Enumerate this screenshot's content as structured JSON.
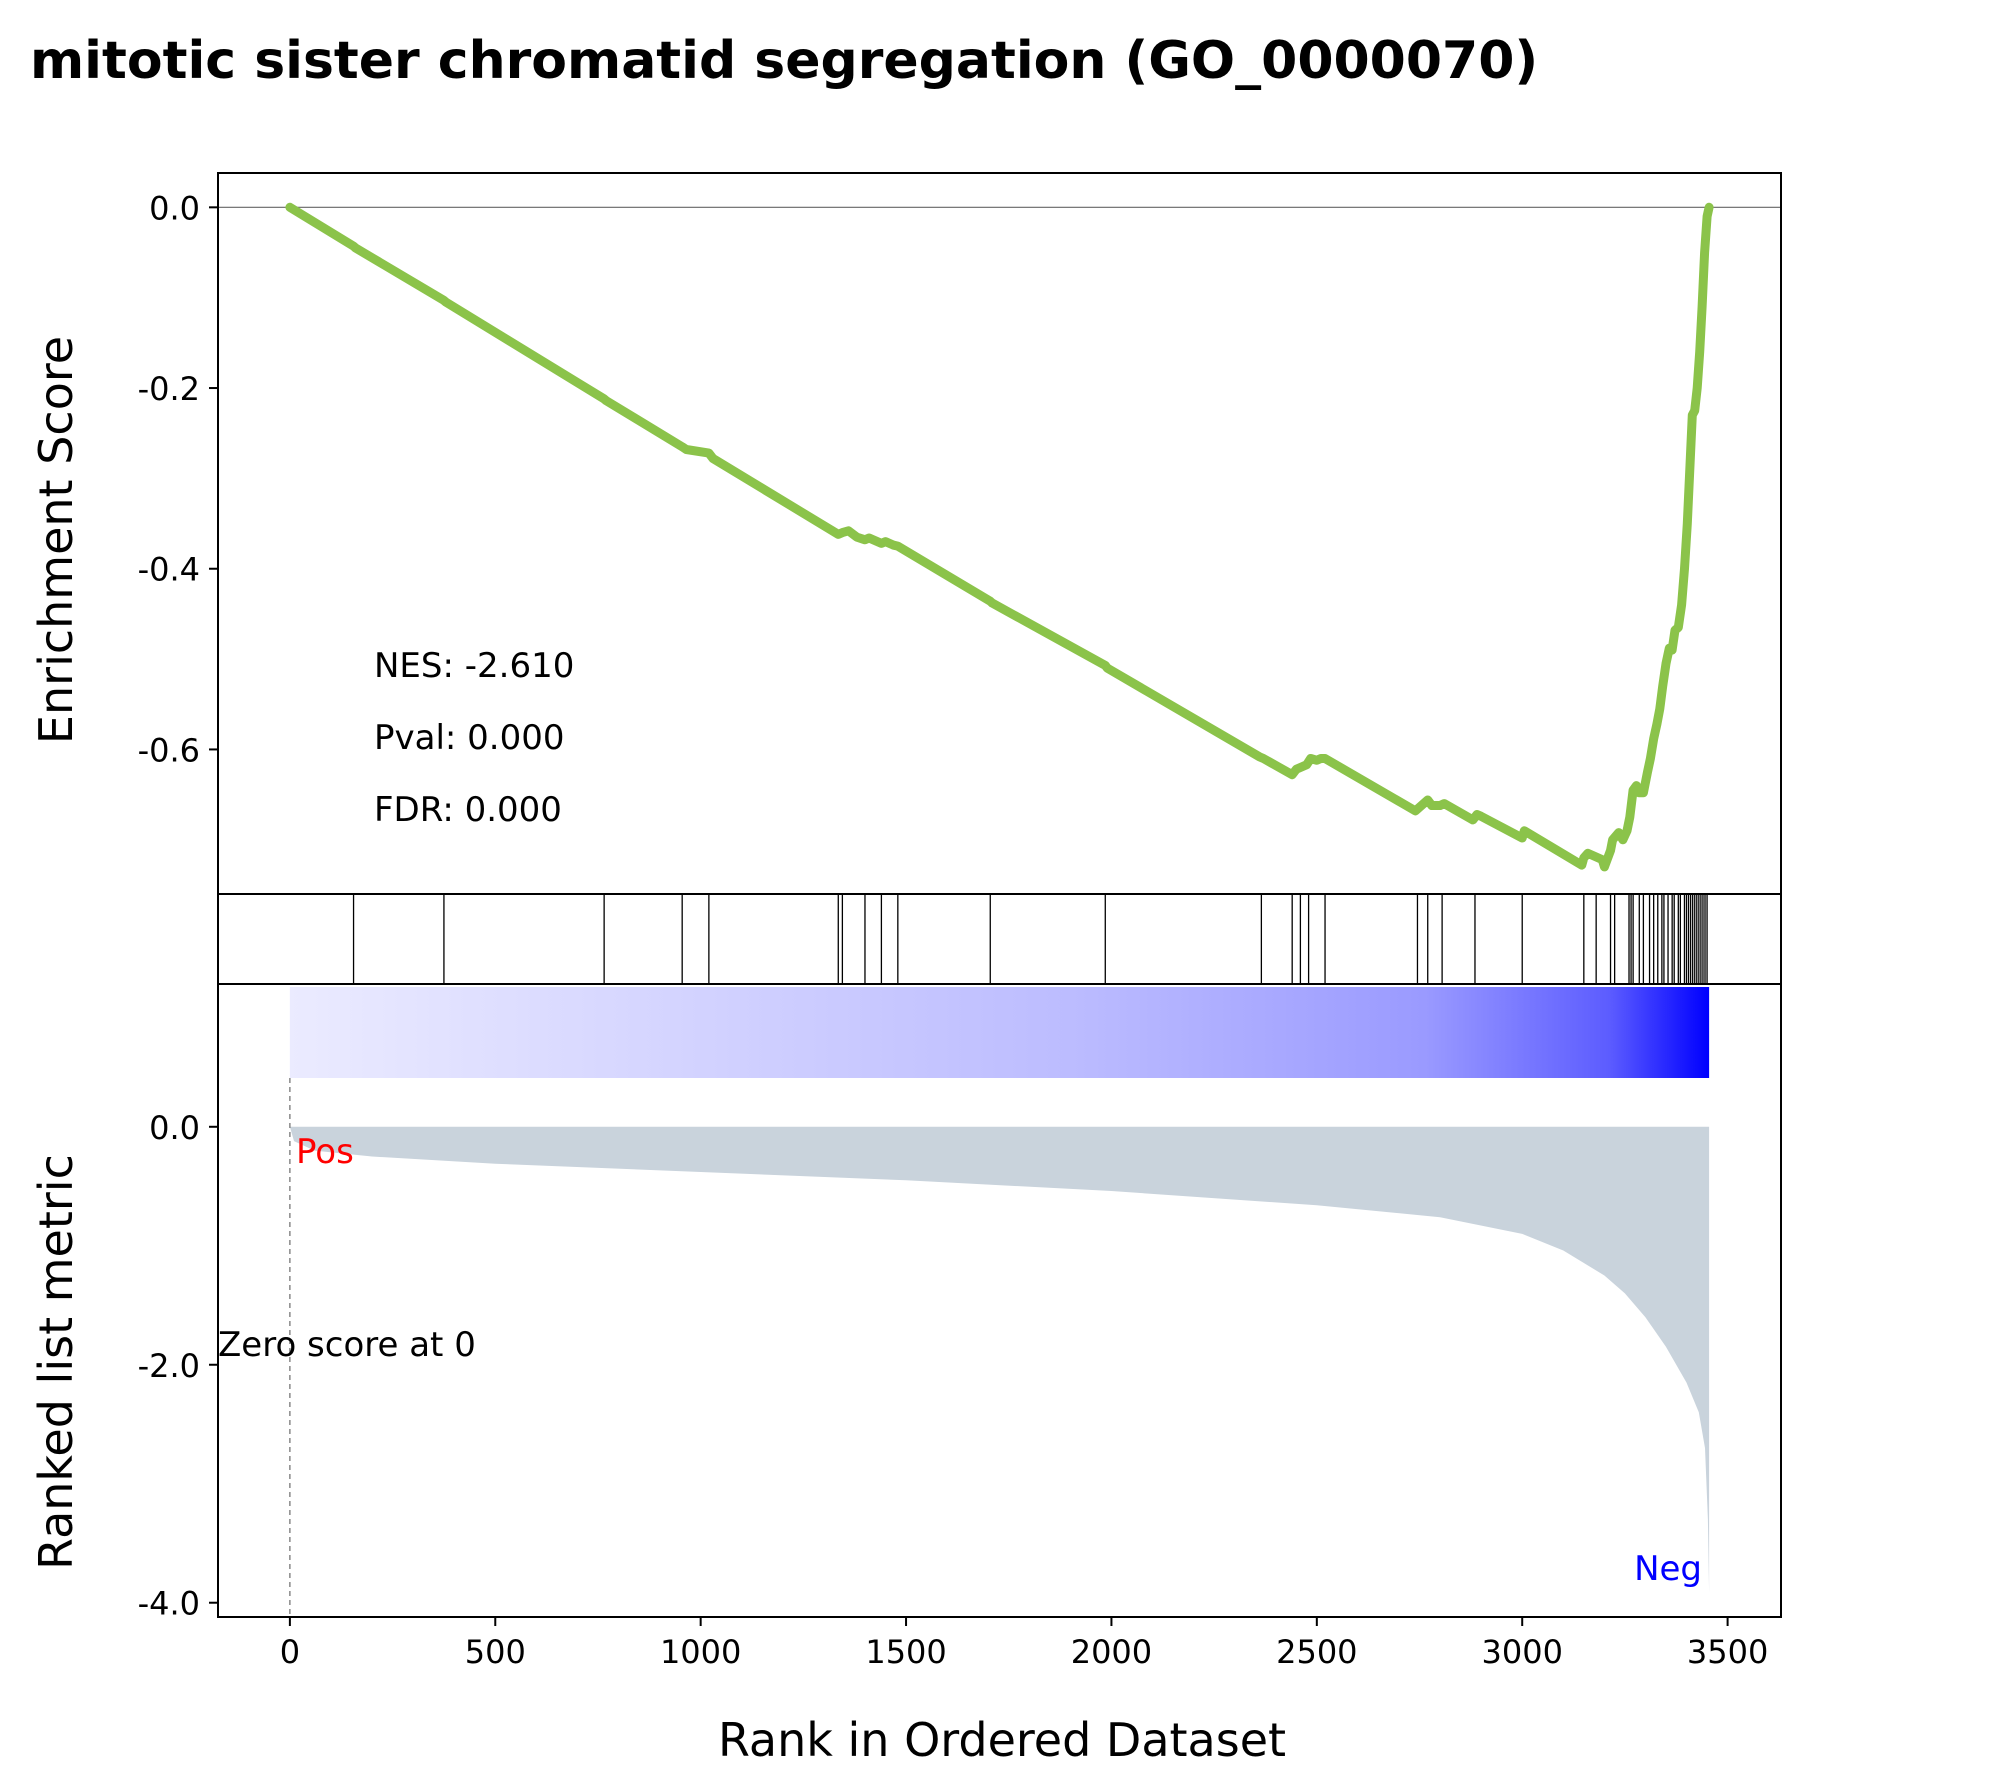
{
  "chart_data": {
    "type": "line",
    "title": "mitotic sister chromatid segregation (GO_0000070)",
    "xlabel": "Rank in Ordered Dataset",
    "xlim": [
      -175,
      3630
    ],
    "xticks": [
      0,
      500,
      1000,
      1500,
      2000,
      2500,
      3000,
      3500
    ],
    "xtick_labels": [
      "0",
      "500",
      "1000",
      "1500",
      "2000",
      "2500",
      "3000",
      "3500"
    ],
    "enrichment_panel": {
      "ylabel": "Enrichment Score",
      "ylim": [
        -0.76,
        0.038
      ],
      "yticks": [
        0.0,
        -0.2,
        -0.4,
        -0.6
      ],
      "ytick_labels": [
        "0.0",
        "-0.2",
        "-0.4",
        "-0.6"
      ],
      "line_color": "#8bc34a",
      "series": [
        {
          "x": [
            0,
            155,
            160,
            375,
            380,
            765,
            770,
            955,
            965,
            1020,
            1030,
            1335,
            1345,
            1360,
            1380,
            1400,
            1410,
            1440,
            1450,
            1470,
            1480,
            1705,
            1710,
            1985,
            1990,
            2360,
            2370,
            2440,
            2450,
            2475,
            2485,
            2500,
            2510,
            2520,
            2740,
            2750,
            2770,
            2780,
            2800,
            2810,
            2880,
            2890,
            2900,
            3000,
            3005,
            3145,
            3150,
            3160,
            3195,
            3200,
            3215,
            3220,
            3235,
            3245,
            3255,
            3262,
            3270,
            3278,
            3285,
            3295,
            3305,
            3312,
            3320,
            3328,
            3335,
            3342,
            3350,
            3358,
            3365,
            3372,
            3380,
            3388,
            3395,
            3402,
            3408,
            3414,
            3420,
            3426,
            3432,
            3438,
            3444,
            3450,
            3455
          ],
          "y": [
            0.0,
            -0.043,
            -0.045,
            -0.103,
            -0.105,
            -0.212,
            -0.214,
            -0.265,
            -0.268,
            -0.272,
            -0.278,
            -0.362,
            -0.36,
            -0.358,
            -0.365,
            -0.368,
            -0.366,
            -0.372,
            -0.37,
            -0.374,
            -0.375,
            -0.436,
            -0.438,
            -0.507,
            -0.51,
            -0.608,
            -0.61,
            -0.628,
            -0.622,
            -0.617,
            -0.61,
            -0.612,
            -0.61,
            -0.61,
            -0.668,
            -0.664,
            -0.656,
            -0.662,
            -0.662,
            -0.66,
            -0.678,
            -0.672,
            -0.674,
            -0.698,
            -0.69,
            -0.728,
            -0.72,
            -0.715,
            -0.722,
            -0.73,
            -0.712,
            -0.7,
            -0.692,
            -0.7,
            -0.69,
            -0.675,
            -0.645,
            -0.64,
            -0.648,
            -0.648,
            -0.625,
            -0.61,
            -0.588,
            -0.572,
            -0.555,
            -0.53,
            -0.505,
            -0.488,
            -0.49,
            -0.468,
            -0.465,
            -0.44,
            -0.4,
            -0.35,
            -0.29,
            -0.23,
            -0.225,
            -0.2,
            -0.16,
            -0.11,
            -0.05,
            -0.01,
            0.0
          ]
        }
      ],
      "stats": [
        "NES: -2.610",
        "Pval: 0.000",
        "FDR: 0.000"
      ]
    },
    "hits": [
      155,
      375,
      765,
      955,
      1020,
      1335,
      1345,
      1400,
      1440,
      1480,
      1705,
      1985,
      2365,
      2440,
      2460,
      2480,
      2520,
      2745,
      2770,
      2805,
      2885,
      3000,
      3150,
      3180,
      3215,
      3225,
      3260,
      3265,
      3270,
      3285,
      3295,
      3310,
      3320,
      3330,
      3340,
      3345,
      3355,
      3365,
      3370,
      3380,
      3385,
      3395,
      3400,
      3405,
      3410,
      3415,
      3420,
      3425,
      3430,
      3435,
      3440,
      3445,
      3450
    ],
    "gradient": {
      "from": "#ebebff",
      "to": "#0000ff",
      "x_range": [
        0,
        3455
      ]
    },
    "ranked_panel": {
      "ylabel": "Ranked list metric",
      "ylim": [
        -4.12,
        1.2
      ],
      "yticks": [
        0.0,
        -2.0,
        -4.0
      ],
      "ytick_labels": [
        "0.0",
        "-2.0",
        "-4.0"
      ],
      "fill_color": "#c9d3dc",
      "x": [
        0,
        10,
        60,
        200,
        500,
        1000,
        1500,
        2000,
        2500,
        2800,
        3000,
        3100,
        3200,
        3250,
        3300,
        3350,
        3400,
        3430,
        3445,
        3452,
        3455
      ],
      "y": [
        0.0,
        -0.12,
        -0.2,
        -0.25,
        -0.31,
        -0.38,
        -0.45,
        -0.54,
        -0.66,
        -0.76,
        -0.9,
        -1.04,
        -1.25,
        -1.4,
        -1.6,
        -1.85,
        -2.15,
        -2.4,
        -2.7,
        -3.3,
        -3.92
      ],
      "zero_score_label": "Zero score at 0",
      "zero_x": 0,
      "pos_label": "Pos",
      "pos_color": "#ff0000",
      "neg_label": "Neg",
      "neg_color": "#0000ff"
    }
  }
}
